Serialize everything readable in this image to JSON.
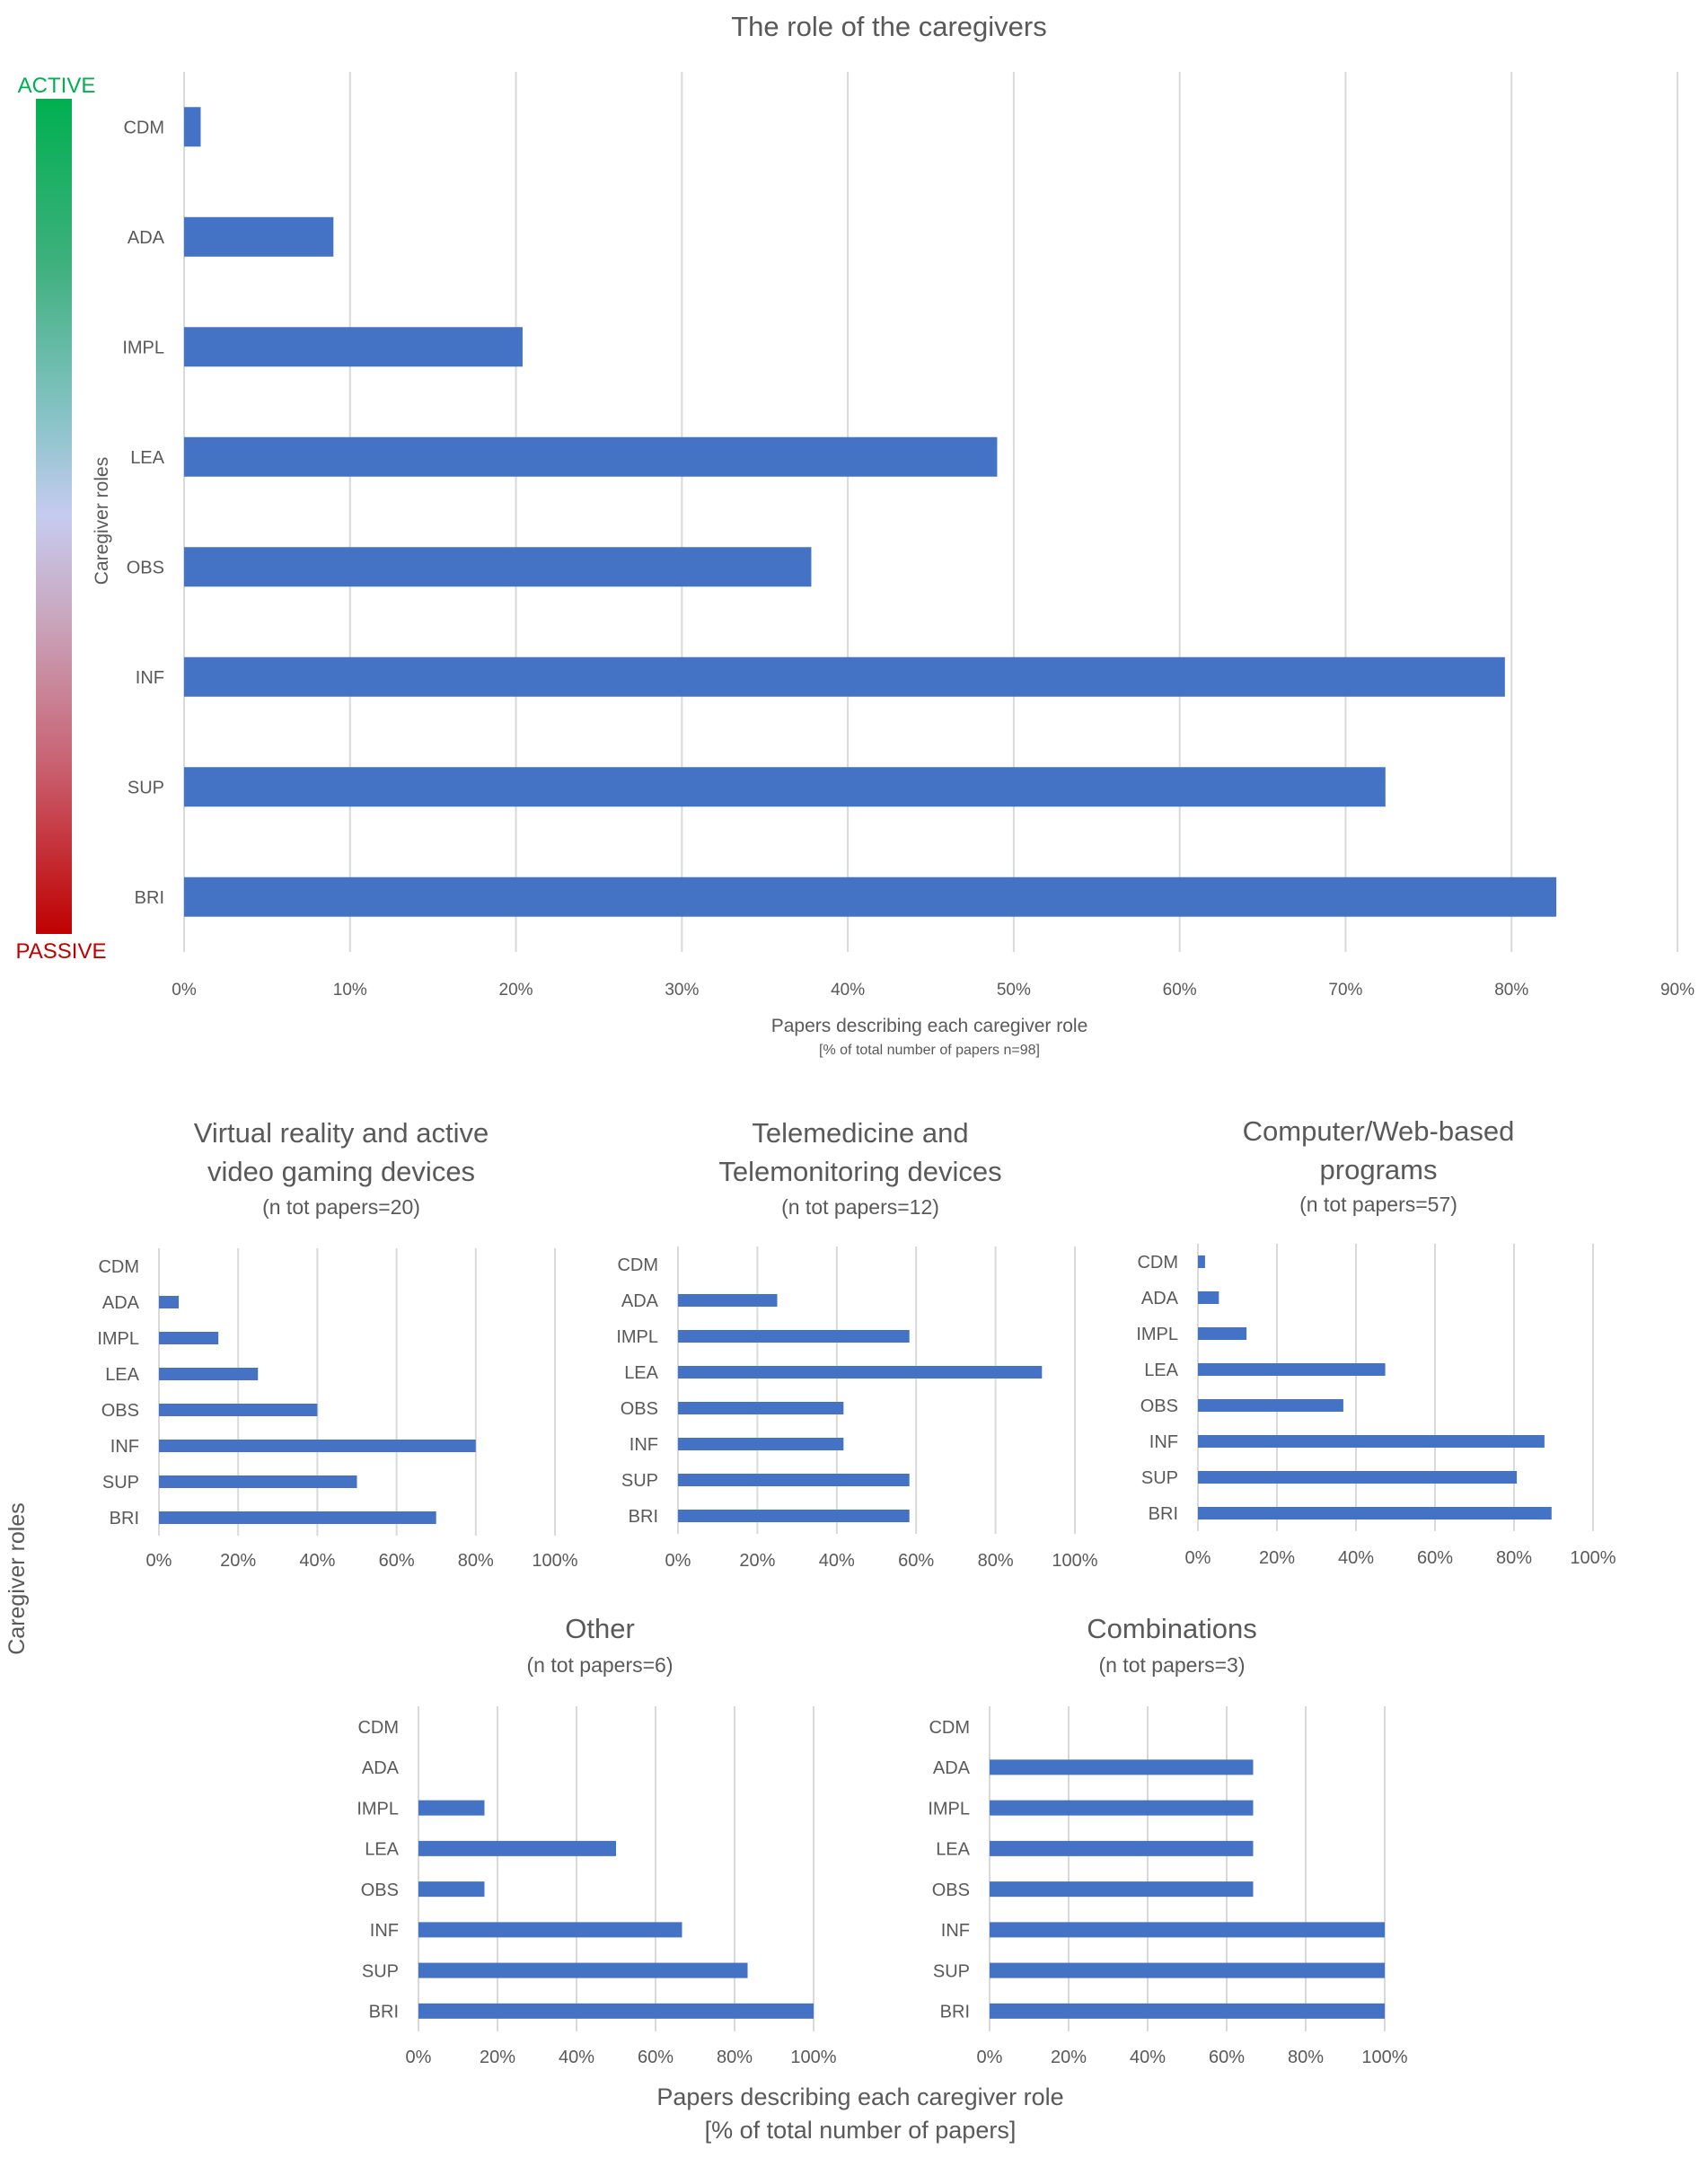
{
  "figure": {
    "scale_active": "ACTIVE",
    "scale_passive": "PASSIVE",
    "colors": {
      "bar": "#4472C4",
      "grid": "#D9D9D9",
      "text": "#595959",
      "active": "#00B050",
      "passive": "#C00000"
    }
  },
  "main": {
    "title": "The role of the caregivers",
    "ylabel": "Caregiver roles",
    "xlabel_line1": "Papers describing each caregiver role",
    "xlabel_line2": "[% of total number of papers n=98]"
  },
  "bottom": {
    "ylabel": "Caregiver roles",
    "xlabel_line1": "Papers describing each caregiver role",
    "xlabel_line2": "[% of total number of papers]"
  },
  "chart_data": [
    {
      "id": "main",
      "type": "bar",
      "orientation": "horizontal",
      "title": "The role of the caregivers",
      "xlabel": "Papers describing each caregiver role [% of total number of papers n=98]",
      "ylabel": "Caregiver roles",
      "categories": [
        "CDM",
        "ADA",
        "IMPL",
        "LEA",
        "OBS",
        "INF",
        "SUP",
        "BRI"
      ],
      "values": [
        1,
        9,
        20.4,
        49,
        37.8,
        79.6,
        72.4,
        82.7
      ],
      "xlim": [
        0,
        90
      ],
      "xticks": [
        0,
        10,
        20,
        30,
        40,
        50,
        60,
        70,
        80,
        90
      ],
      "tick_labels": [
        "0%",
        "10%",
        "20%",
        "30%",
        "40%",
        "50%",
        "60%",
        "70%",
        "80%",
        "90%"
      ]
    },
    {
      "id": "vr",
      "type": "bar",
      "orientation": "horizontal",
      "title_line1": "Virtual reality  and active",
      "title_line2": "video gaming devices",
      "subtitle": "(n tot papers=20)",
      "categories": [
        "CDM",
        "ADA",
        "IMPL",
        "LEA",
        "OBS",
        "INF",
        "SUP",
        "BRI"
      ],
      "values": [
        0,
        5,
        15,
        25,
        40,
        80,
        50,
        70
      ],
      "xlim": [
        0,
        100
      ],
      "xticks": [
        0,
        20,
        40,
        60,
        80,
        100
      ],
      "tick_labels": [
        "0%",
        "20%",
        "40%",
        "60%",
        "80%",
        "100%"
      ]
    },
    {
      "id": "tele",
      "type": "bar",
      "orientation": "horizontal",
      "title_line1": "Telemedicine  and",
      "title_line2": "Telemonitoring devices",
      "subtitle": "(n tot papers=12)",
      "categories": [
        "CDM",
        "ADA",
        "IMPL",
        "LEA",
        "OBS",
        "INF",
        "SUP",
        "BRI"
      ],
      "values": [
        0,
        25,
        58.3,
        91.7,
        41.7,
        41.7,
        58.3,
        58.3
      ],
      "xlim": [
        0,
        100
      ],
      "xticks": [
        0,
        20,
        40,
        60,
        80,
        100
      ],
      "tick_labels": [
        "0%",
        "20%",
        "40%",
        "60%",
        "80%",
        "100%"
      ]
    },
    {
      "id": "web",
      "type": "bar",
      "orientation": "horizontal",
      "title_line1": "Computer/Web-based",
      "title_line2": "programs",
      "subtitle": "(n tot papers=57)",
      "categories": [
        "CDM",
        "ADA",
        "IMPL",
        "LEA",
        "OBS",
        "INF",
        "SUP",
        "BRI"
      ],
      "values": [
        1.8,
        5.3,
        12.3,
        47.4,
        36.8,
        87.7,
        80.7,
        89.5
      ],
      "xlim": [
        0,
        100
      ],
      "xticks": [
        0,
        20,
        40,
        60,
        80,
        100
      ],
      "tick_labels": [
        "0%",
        "20%",
        "40%",
        "60%",
        "80%",
        "100%"
      ]
    },
    {
      "id": "other",
      "type": "bar",
      "orientation": "horizontal",
      "title_line1": "Other",
      "subtitle": "(n tot papers=6)",
      "categories": [
        "CDM",
        "ADA",
        "IMPL",
        "LEA",
        "OBS",
        "INF",
        "SUP",
        "BRI"
      ],
      "values": [
        0,
        0,
        16.7,
        50,
        16.7,
        66.7,
        83.3,
        100
      ],
      "xlim": [
        0,
        100
      ],
      "xticks": [
        0,
        20,
        40,
        60,
        80,
        100
      ],
      "tick_labels": [
        "0%",
        "20%",
        "40%",
        "60%",
        "80%",
        "100%"
      ]
    },
    {
      "id": "comb",
      "type": "bar",
      "orientation": "horizontal",
      "title_line1": "Combinations",
      "subtitle": "(n tot papers=3)",
      "categories": [
        "CDM",
        "ADA",
        "IMPL",
        "LEA",
        "OBS",
        "INF",
        "SUP",
        "BRI"
      ],
      "values": [
        0,
        66.7,
        66.7,
        66.7,
        66.7,
        100,
        100,
        100
      ],
      "xlim": [
        0,
        100
      ],
      "xticks": [
        0,
        20,
        40,
        60,
        80,
        100
      ],
      "tick_labels": [
        "0%",
        "20%",
        "40%",
        "60%",
        "80%",
        "100%"
      ]
    }
  ]
}
